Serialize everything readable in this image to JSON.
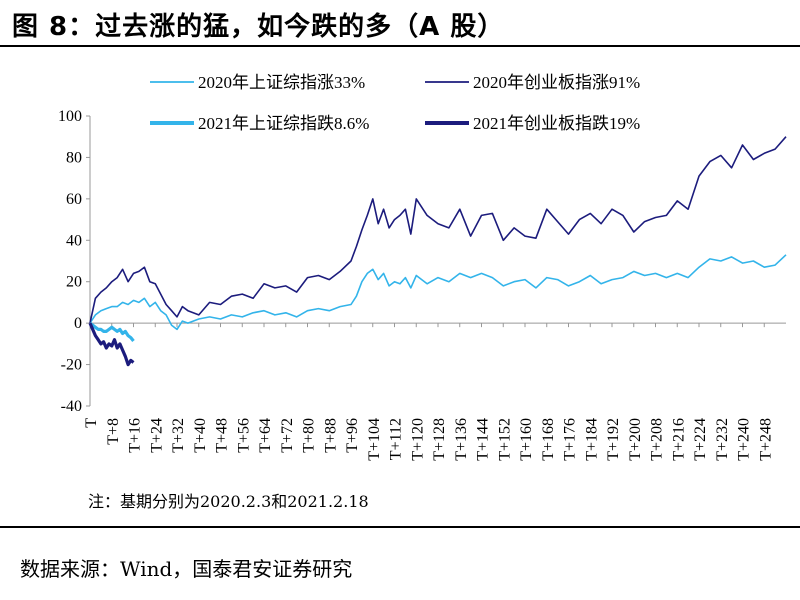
{
  "figure": {
    "title": "图 8：过去涨的猛，如今跌的多（A 股）",
    "note": "注：基期分别为2020.2.3和2021.2.18",
    "source": "数据来源：Wind，国泰君安证券研究"
  },
  "chart_data": {
    "type": "line",
    "title": "",
    "xlabel": "",
    "ylabel": "",
    "ylim": [
      -40,
      100
    ],
    "yticks": [
      -40,
      -20,
      0,
      20,
      40,
      60,
      80,
      100
    ],
    "xlim": [
      0,
      256
    ],
    "xticks": [
      "T",
      "T+8",
      "T+16",
      "T+24",
      "T+32",
      "T+40",
      "T+48",
      "T+56",
      "T+64",
      "T+72",
      "T+80",
      "T+88",
      "T+96",
      "T+104",
      "T+112",
      "T+120",
      "T+128",
      "T+136",
      "T+144",
      "T+152",
      "T+160",
      "T+168",
      "T+176",
      "T+184",
      "T+192",
      "T+200",
      "T+208",
      "T+216",
      "T+224",
      "T+232",
      "T+240",
      "T+248"
    ],
    "grid": false,
    "legend_position": "top",
    "series": [
      {
        "name": "2020年上证综指涨33%",
        "color": "#33b4ea",
        "width": "thin",
        "x": [
          0,
          2,
          4,
          6,
          8,
          10,
          12,
          14,
          16,
          18,
          20,
          22,
          24,
          26,
          28,
          30,
          32,
          34,
          36,
          40,
          44,
          48,
          52,
          56,
          60,
          64,
          68,
          72,
          76,
          80,
          84,
          88,
          92,
          96,
          98,
          100,
          102,
          104,
          106,
          108,
          110,
          112,
          114,
          116,
          118,
          120,
          124,
          128,
          132,
          136,
          140,
          144,
          148,
          152,
          156,
          160,
          164,
          168,
          172,
          176,
          180,
          184,
          188,
          192,
          196,
          200,
          204,
          208,
          212,
          216,
          220,
          224,
          228,
          232,
          236,
          240,
          244,
          248,
          252,
          256
        ],
        "y": [
          0,
          4,
          6,
          7,
          8,
          8,
          10,
          9,
          11,
          10,
          12,
          8,
          10,
          6,
          4,
          -1,
          -3,
          1,
          0,
          2,
          3,
          2,
          4,
          3,
          5,
          6,
          4,
          5,
          3,
          6,
          7,
          6,
          8,
          9,
          13,
          20,
          24,
          26,
          21,
          24,
          18,
          20,
          19,
          22,
          17,
          23,
          19,
          22,
          20,
          24,
          22,
          24,
          22,
          18,
          20,
          21,
          17,
          22,
          21,
          18,
          20,
          23,
          19,
          21,
          22,
          25,
          23,
          24,
          22,
          24,
          22,
          27,
          31,
          30,
          32,
          29,
          30,
          27,
          28,
          33
        ]
      },
      {
        "name": "2020年创业板指涨91%",
        "color": "#1c1c7d",
        "width": "thin",
        "x": [
          0,
          2,
          4,
          6,
          8,
          10,
          12,
          14,
          16,
          18,
          20,
          22,
          24,
          26,
          28,
          30,
          32,
          34,
          36,
          40,
          44,
          48,
          52,
          56,
          60,
          64,
          68,
          72,
          76,
          80,
          84,
          88,
          92,
          96,
          98,
          100,
          102,
          104,
          106,
          108,
          110,
          112,
          114,
          116,
          118,
          120,
          124,
          128,
          132,
          136,
          140,
          144,
          148,
          152,
          156,
          160,
          164,
          168,
          172,
          176,
          180,
          184,
          188,
          192,
          196,
          200,
          204,
          208,
          212,
          216,
          220,
          224,
          228,
          232,
          236,
          240,
          244,
          248,
          252,
          256
        ],
        "y": [
          0,
          12,
          15,
          17,
          20,
          22,
          26,
          20,
          24,
          25,
          27,
          20,
          19,
          14,
          9,
          6,
          3,
          8,
          6,
          4,
          10,
          9,
          13,
          14,
          12,
          19,
          17,
          18,
          15,
          22,
          23,
          21,
          25,
          30,
          37,
          45,
          52,
          60,
          48,
          55,
          46,
          50,
          52,
          55,
          43,
          60,
          52,
          48,
          46,
          55,
          42,
          52,
          53,
          40,
          46,
          42,
          41,
          55,
          49,
          43,
          50,
          53,
          48,
          55,
          52,
          44,
          49,
          51,
          52,
          59,
          55,
          71,
          78,
          81,
          75,
          86,
          79,
          82,
          84,
          90
        ]
      },
      {
        "name": "2021年上证综指跌8.6%",
        "color": "#33b4ea",
        "width": "thick",
        "x": [
          0,
          1,
          2,
          3,
          4,
          5,
          6,
          7,
          8,
          9,
          10,
          11,
          12,
          13,
          14,
          15,
          16
        ],
        "y": [
          0,
          -1,
          -2,
          -3,
          -3,
          -4,
          -4,
          -3,
          -2,
          -3,
          -4,
          -3,
          -5,
          -4,
          -6,
          -7,
          -8.6
        ]
      },
      {
        "name": "2021年创业板指跌19%",
        "color": "#1c1c7d",
        "width": "thick",
        "x": [
          0,
          1,
          2,
          3,
          4,
          5,
          6,
          7,
          8,
          9,
          10,
          11,
          12,
          13,
          14,
          15,
          16
        ],
        "y": [
          0,
          -3,
          -6,
          -8,
          -10,
          -9,
          -12,
          -10,
          -11,
          -8,
          -12,
          -10,
          -13,
          -16,
          -20,
          -18,
          -19
        ]
      }
    ]
  }
}
